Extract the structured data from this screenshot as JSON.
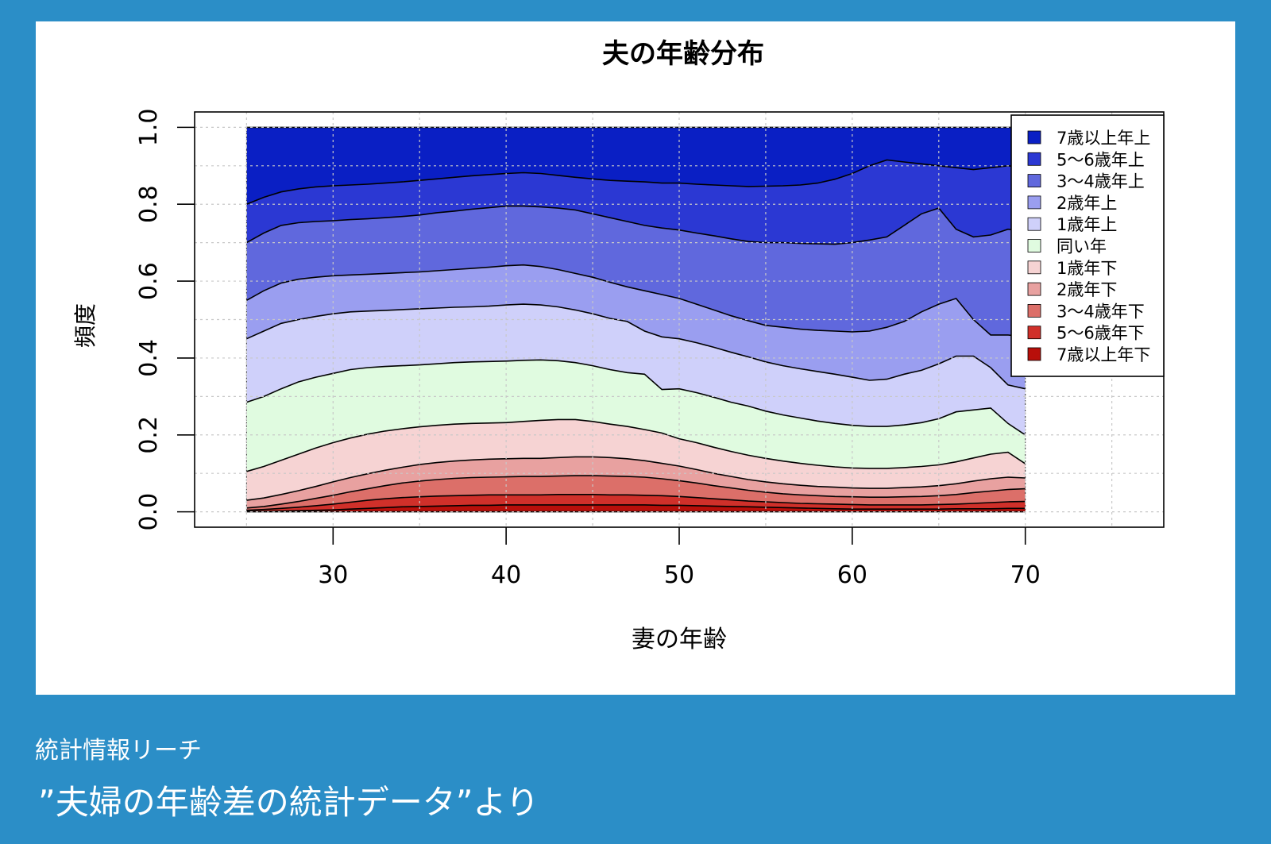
{
  "source": "統計情報リーチ",
  "caption": "”夫婦の年齢差の統計データ”より",
  "chart_data": {
    "type": "area",
    "stacked": true,
    "title": "夫の年齢分布",
    "xlabel": "妻の年齢",
    "ylabel": "頻度",
    "xlim": [
      22,
      78
    ],
    "ylim": [
      -0.04,
      1.04
    ],
    "xticks": [
      30,
      40,
      50,
      60,
      70
    ],
    "yticks": [
      0.0,
      0.2,
      0.4,
      0.6,
      0.8,
      1.0
    ],
    "ytick_labels": [
      "0.0",
      "0.2",
      "0.4",
      "0.6",
      "0.8",
      "1.0"
    ],
    "grid": true,
    "legend_position": "top-right",
    "x": [
      25,
      26,
      27,
      28,
      29,
      30,
      31,
      32,
      33,
      34,
      35,
      36,
      37,
      38,
      39,
      40,
      41,
      42,
      43,
      44,
      45,
      46,
      47,
      48,
      49,
      50,
      51,
      52,
      53,
      54,
      55,
      56,
      57,
      58,
      59,
      60,
      61,
      62,
      63,
      64,
      65,
      66,
      67,
      68,
      69,
      70
    ],
    "boundaries": [
      [
        0.0,
        0.0,
        0.0,
        0.0,
        0.0,
        0.0,
        0.0,
        0.0,
        0.0,
        0.0,
        0.0,
        0.0,
        0.0,
        0.0,
        0.0,
        0.0,
        0.0,
        0.0,
        0.0,
        0.0,
        0.0,
        0.0,
        0.0,
        0.0,
        0.0,
        0.0,
        0.0,
        0.0,
        0.0,
        0.0,
        0.0,
        0.0,
        0.0,
        0.0,
        0.0,
        0.0,
        0.0,
        0.0,
        0.0,
        0.0,
        0.0,
        0.0,
        0.0,
        0.0,
        0.0,
        0.0
      ],
      [
        0.001,
        0.001,
        0.002,
        0.003,
        0.004,
        0.005,
        0.007,
        0.009,
        0.011,
        0.013,
        0.014,
        0.015,
        0.016,
        0.017,
        0.017,
        0.018,
        0.018,
        0.018,
        0.018,
        0.018,
        0.018,
        0.018,
        0.018,
        0.018,
        0.017,
        0.017,
        0.016,
        0.015,
        0.014,
        0.013,
        0.012,
        0.011,
        0.01,
        0.009,
        0.008,
        0.007,
        0.007,
        0.007,
        0.007,
        0.007,
        0.007,
        0.008,
        0.008,
        0.008,
        0.009,
        0.009
      ],
      [
        0.004,
        0.006,
        0.009,
        0.012,
        0.016,
        0.02,
        0.025,
        0.03,
        0.034,
        0.037,
        0.039,
        0.041,
        0.042,
        0.043,
        0.044,
        0.044,
        0.044,
        0.044,
        0.045,
        0.045,
        0.045,
        0.044,
        0.044,
        0.043,
        0.042,
        0.04,
        0.037,
        0.034,
        0.031,
        0.028,
        0.026,
        0.024,
        0.022,
        0.021,
        0.02,
        0.019,
        0.018,
        0.018,
        0.018,
        0.018,
        0.019,
        0.02,
        0.022,
        0.024,
        0.026,
        0.027
      ],
      [
        0.01,
        0.014,
        0.02,
        0.027,
        0.035,
        0.043,
        0.052,
        0.06,
        0.068,
        0.075,
        0.08,
        0.084,
        0.087,
        0.089,
        0.09,
        0.091,
        0.092,
        0.092,
        0.093,
        0.094,
        0.094,
        0.093,
        0.092,
        0.09,
        0.086,
        0.081,
        0.075,
        0.068,
        0.062,
        0.056,
        0.051,
        0.047,
        0.044,
        0.042,
        0.04,
        0.039,
        0.038,
        0.038,
        0.039,
        0.04,
        0.042,
        0.045,
        0.05,
        0.054,
        0.058,
        0.06
      ],
      [
        0.03,
        0.036,
        0.045,
        0.055,
        0.066,
        0.078,
        0.089,
        0.099,
        0.108,
        0.116,
        0.123,
        0.128,
        0.132,
        0.135,
        0.137,
        0.138,
        0.139,
        0.139,
        0.141,
        0.143,
        0.143,
        0.141,
        0.138,
        0.133,
        0.126,
        0.119,
        0.11,
        0.1,
        0.092,
        0.084,
        0.078,
        0.073,
        0.069,
        0.066,
        0.064,
        0.062,
        0.061,
        0.061,
        0.063,
        0.065,
        0.068,
        0.073,
        0.08,
        0.086,
        0.09,
        0.088
      ],
      [
        0.105,
        0.118,
        0.134,
        0.15,
        0.166,
        0.18,
        0.192,
        0.202,
        0.21,
        0.216,
        0.221,
        0.225,
        0.228,
        0.23,
        0.231,
        0.232,
        0.235,
        0.238,
        0.24,
        0.24,
        0.235,
        0.228,
        0.222,
        0.214,
        0.205,
        0.19,
        0.18,
        0.168,
        0.157,
        0.147,
        0.139,
        0.132,
        0.126,
        0.121,
        0.117,
        0.114,
        0.113,
        0.113,
        0.115,
        0.118,
        0.122,
        0.13,
        0.14,
        0.15,
        0.155,
        0.125
      ],
      [
        0.285,
        0.3,
        0.32,
        0.338,
        0.35,
        0.36,
        0.37,
        0.375,
        0.378,
        0.38,
        0.382,
        0.385,
        0.388,
        0.39,
        0.391,
        0.392,
        0.394,
        0.395,
        0.393,
        0.388,
        0.38,
        0.37,
        0.362,
        0.358,
        0.318,
        0.32,
        0.31,
        0.298,
        0.285,
        0.275,
        0.262,
        0.252,
        0.244,
        0.236,
        0.23,
        0.225,
        0.222,
        0.222,
        0.226,
        0.232,
        0.242,
        0.26,
        0.265,
        0.27,
        0.23,
        0.2
      ],
      [
        0.45,
        0.47,
        0.49,
        0.5,
        0.508,
        0.515,
        0.52,
        0.522,
        0.524,
        0.526,
        0.528,
        0.53,
        0.532,
        0.533,
        0.535,
        0.538,
        0.54,
        0.538,
        0.533,
        0.525,
        0.515,
        0.503,
        0.495,
        0.47,
        0.455,
        0.45,
        0.44,
        0.428,
        0.415,
        0.403,
        0.39,
        0.38,
        0.372,
        0.365,
        0.358,
        0.35,
        0.342,
        0.345,
        0.358,
        0.368,
        0.385,
        0.405,
        0.405,
        0.375,
        0.33,
        0.32
      ],
      [
        0.55,
        0.575,
        0.595,
        0.605,
        0.61,
        0.614,
        0.616,
        0.618,
        0.62,
        0.622,
        0.624,
        0.627,
        0.63,
        0.633,
        0.636,
        0.64,
        0.642,
        0.638,
        0.63,
        0.62,
        0.61,
        0.597,
        0.585,
        0.575,
        0.565,
        0.555,
        0.54,
        0.525,
        0.51,
        0.497,
        0.485,
        0.48,
        0.475,
        0.472,
        0.47,
        0.468,
        0.47,
        0.48,
        0.495,
        0.52,
        0.54,
        0.555,
        0.5,
        0.46,
        0.46,
        0.455
      ],
      [
        0.7,
        0.725,
        0.745,
        0.752,
        0.755,
        0.757,
        0.76,
        0.762,
        0.765,
        0.768,
        0.772,
        0.778,
        0.782,
        0.787,
        0.791,
        0.795,
        0.795,
        0.793,
        0.79,
        0.785,
        0.775,
        0.765,
        0.755,
        0.745,
        0.738,
        0.733,
        0.725,
        0.718,
        0.71,
        0.703,
        0.7,
        0.7,
        0.698,
        0.697,
        0.696,
        0.7,
        0.707,
        0.715,
        0.745,
        0.775,
        0.79,
        0.735,
        0.715,
        0.72,
        0.735,
        0.73
      ],
      [
        0.8,
        0.818,
        0.832,
        0.84,
        0.845,
        0.848,
        0.85,
        0.852,
        0.855,
        0.858,
        0.862,
        0.866,
        0.87,
        0.874,
        0.877,
        0.88,
        0.882,
        0.88,
        0.875,
        0.87,
        0.866,
        0.862,
        0.86,
        0.858,
        0.855,
        0.855,
        0.852,
        0.85,
        0.848,
        0.846,
        0.847,
        0.848,
        0.85,
        0.855,
        0.865,
        0.88,
        0.9,
        0.915,
        0.91,
        0.905,
        0.9,
        0.895,
        0.89,
        0.895,
        0.9,
        0.895
      ],
      [
        1.0,
        1.0,
        1.0,
        1.0,
        1.0,
        1.0,
        1.0,
        1.0,
        1.0,
        1.0,
        1.0,
        1.0,
        1.0,
        1.0,
        1.0,
        1.0,
        1.0,
        1.0,
        1.0,
        1.0,
        1.0,
        1.0,
        1.0,
        1.0,
        1.0,
        1.0,
        1.0,
        1.0,
        1.0,
        1.0,
        1.0,
        1.0,
        1.0,
        1.0,
        1.0,
        1.0,
        1.0,
        1.0,
        1.0,
        1.0,
        1.0,
        1.0,
        1.0,
        1.0,
        1.0,
        1.0
      ]
    ],
    "series_colors": [
      "#b80f0a",
      "#d0302a",
      "#dc6f69",
      "#e8a1a0",
      "#f6d3d3",
      "#e0fbe0",
      "#cfd0fa",
      "#9a9ef0",
      "#6068dd",
      "#2b38d3",
      "#0a1fc4"
    ],
    "legend": [
      {
        "label": "7歳以上年上",
        "color": "#0a1fc4"
      },
      {
        "label": "5～6歳年上",
        "color": "#2b38d3"
      },
      {
        "label": "3～4歳年上",
        "color": "#6068dd"
      },
      {
        "label": "2歳年上",
        "color": "#9a9ef0"
      },
      {
        "label": "1歳年上",
        "color": "#cfd0fa"
      },
      {
        "label": "同い年",
        "color": "#e0fbe0"
      },
      {
        "label": "1歳年下",
        "color": "#f6d3d3"
      },
      {
        "label": "2歳年下",
        "color": "#e8a1a0"
      },
      {
        "label": "3～4歳年下",
        "color": "#dc6f69"
      },
      {
        "label": "5～6歳年下",
        "color": "#d0302a"
      },
      {
        "label": "7歳以上年下",
        "color": "#b80f0a"
      }
    ]
  }
}
